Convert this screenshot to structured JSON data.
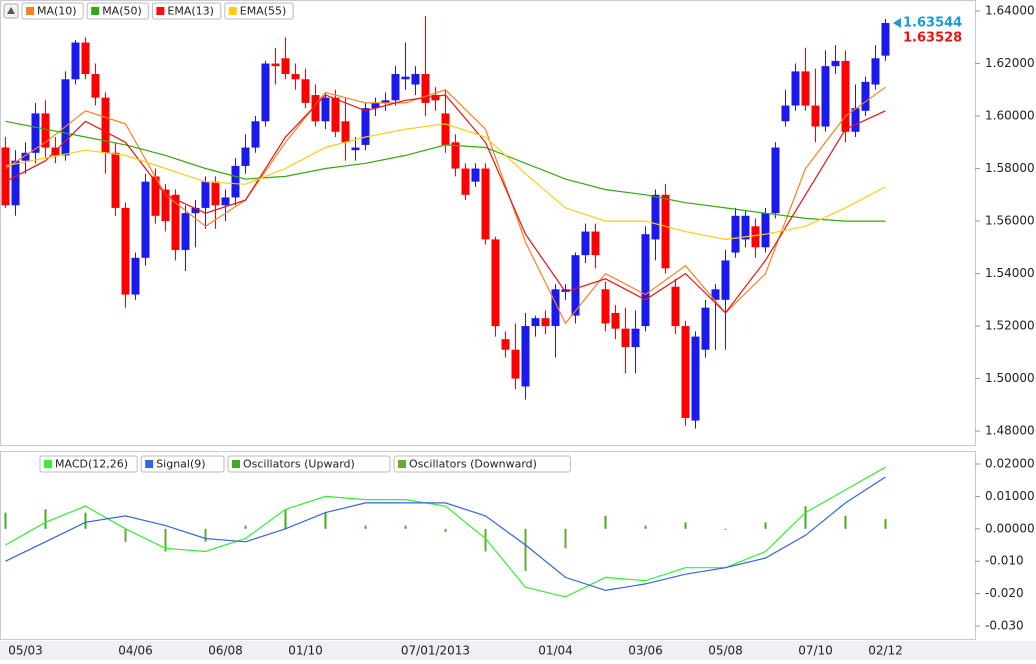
{
  "chart_data": [
    {
      "type": "candlestick",
      "categories": [
        null,
        null,
        "05/03",
        null,
        null,
        null,
        null,
        null,
        null,
        null,
        null,
        null,
        null,
        "04/06",
        null,
        null,
        null,
        null,
        null,
        null,
        null,
        null,
        "06/08",
        null,
        null,
        null,
        null,
        null,
        null,
        null,
        "01/10",
        null,
        null,
        null,
        null,
        null,
        null,
        null,
        null,
        null,
        null,
        null,
        null,
        "07/01/2013",
        null,
        null,
        null,
        null,
        null,
        null,
        null,
        null,
        null,
        null,
        null,
        "01/04",
        null,
        null,
        null,
        null,
        null,
        null,
        null,
        null,
        "03/06",
        null,
        null,
        null,
        null,
        null,
        null,
        null,
        "05/08",
        null,
        null,
        null,
        null,
        null,
        null,
        null,
        null,
        "07/10",
        null,
        null,
        null,
        null,
        null,
        null,
        "02/12"
      ],
      "open": [
        1.588,
        1.566,
        1.583,
        1.586,
        1.601,
        1.588,
        1.585,
        1.614,
        1.628,
        1.616,
        1.607,
        1.586,
        1.565,
        1.532,
        1.546,
        1.577,
        1.572,
        1.57,
        1.549,
        1.563,
        1.565,
        1.575,
        1.566,
        1.569,
        1.581,
        1.588,
        1.598,
        1.62,
        1.622,
        1.616,
        1.614,
        1.608,
        1.598,
        1.607,
        1.598,
        1.587,
        1.589,
        1.603,
        1.605,
        1.606,
        1.614,
        1.612,
        1.616,
        1.608,
        1.601,
        1.59,
        1.58,
        1.575,
        1.58,
        1.553,
        1.515,
        1.511,
        1.497,
        1.52,
        1.523,
        1.52,
        1.533,
        1.524,
        1.547,
        1.556,
        1.534,
        1.525,
        1.519,
        1.512,
        1.52,
        1.553,
        1.57,
        1.535,
        1.52,
        1.484,
        1.511,
        1.53,
        1.53,
        1.548,
        1.553,
        1.558,
        1.55,
        1.563,
        1.598,
        1.604,
        1.617,
        1.604,
        1.596,
        1.619,
        1.621,
        1.594,
        1.602,
        1.612,
        1.623
      ],
      "high": [
        1.592,
        1.587,
        1.59,
        1.605,
        1.606,
        1.592,
        1.617,
        1.629,
        1.63,
        1.62,
        1.609,
        1.59,
        1.567,
        1.548,
        1.578,
        1.58,
        1.574,
        1.572,
        1.566,
        1.568,
        1.577,
        1.577,
        1.572,
        1.584,
        1.593,
        1.6,
        1.621,
        1.626,
        1.63,
        1.62,
        1.618,
        1.612,
        1.609,
        1.61,
        1.607,
        1.592,
        1.605,
        1.607,
        1.609,
        1.619,
        1.628,
        1.619,
        1.638,
        1.611,
        1.61,
        1.593,
        1.582,
        1.582,
        1.582,
        1.554,
        1.518,
        1.521,
        1.525,
        1.524,
        1.526,
        1.536,
        1.536,
        1.548,
        1.559,
        1.559,
        1.537,
        1.528,
        1.527,
        1.526,
        1.558,
        1.572,
        1.574,
        1.538,
        1.522,
        1.518,
        1.53,
        1.536,
        1.549,
        1.565,
        1.564,
        1.561,
        1.565,
        1.59,
        1.61,
        1.62,
        1.626,
        1.618,
        1.625,
        1.627,
        1.625,
        1.612,
        1.615,
        1.627,
        1.637
      ],
      "low": [
        1.565,
        1.562,
        1.578,
        1.582,
        1.584,
        1.582,
        1.583,
        1.612,
        1.614,
        1.604,
        1.578,
        1.562,
        1.527,
        1.53,
        1.543,
        1.559,
        1.556,
        1.545,
        1.541,
        1.55,
        1.557,
        1.557,
        1.56,
        1.566,
        1.578,
        1.586,
        1.596,
        1.612,
        1.614,
        1.61,
        1.603,
        1.596,
        1.595,
        1.592,
        1.583,
        1.583,
        1.587,
        1.6,
        1.602,
        1.604,
        1.61,
        1.608,
        1.6,
        1.602,
        1.586,
        1.577,
        1.568,
        1.573,
        1.551,
        1.516,
        1.508,
        1.496,
        1.492,
        1.516,
        1.517,
        1.508,
        1.53,
        1.521,
        1.544,
        1.542,
        1.518,
        1.515,
        1.502,
        1.502,
        1.518,
        1.545,
        1.54,
        1.517,
        1.482,
        1.481,
        1.508,
        1.511,
        1.511,
        1.546,
        1.55,
        1.546,
        1.548,
        1.561,
        1.596,
        1.602,
        1.602,
        1.59,
        1.594,
        1.616,
        1.59,
        1.592,
        1.6,
        1.61,
        1.621
      ],
      "close": [
        1.566,
        1.583,
        1.586,
        1.601,
        1.588,
        1.585,
        1.614,
        1.628,
        1.616,
        1.607,
        1.586,
        1.565,
        1.532,
        1.546,
        1.575,
        1.562,
        1.56,
        1.549,
        1.563,
        1.565,
        1.575,
        1.566,
        1.569,
        1.581,
        1.588,
        1.598,
        1.62,
        1.619,
        1.616,
        1.614,
        1.605,
        1.598,
        1.607,
        1.594,
        1.59,
        1.588,
        1.603,
        1.605,
        1.606,
        1.616,
        1.615,
        1.616,
        1.605,
        1.606,
        1.589,
        1.58,
        1.57,
        1.58,
        1.553,
        1.52,
        1.511,
        1.5,
        1.52,
        1.523,
        1.52,
        1.534,
        1.534,
        1.547,
        1.556,
        1.547,
        1.521,
        1.519,
        1.512,
        1.519,
        1.555,
        1.57,
        1.542,
        1.52,
        1.485,
        1.516,
        1.527,
        1.534,
        1.545,
        1.562,
        1.562,
        1.55,
        1.563,
        1.588,
        1.604,
        1.617,
        1.604,
        1.596,
        1.619,
        1.621,
        1.594,
        1.603,
        1.613,
        1.622,
        1.63544
      ],
      "up_color": "#1a1aee",
      "down_color": "#ff0000",
      "series": [
        {
          "name": "MA(10)",
          "color": "#ff7f1e",
          "x": [
            0,
            4,
            8,
            12,
            16,
            20,
            24,
            28,
            32,
            36,
            40,
            44,
            48,
            52,
            56,
            60,
            64,
            68,
            72,
            76,
            80,
            84,
            88
          ],
          "values": [
            1.58,
            1.59,
            1.602,
            1.597,
            1.57,
            1.558,
            1.568,
            1.59,
            1.609,
            1.605,
            1.605,
            1.61,
            1.595,
            1.552,
            1.521,
            1.54,
            1.532,
            1.543,
            1.525,
            1.54,
            1.58,
            1.6,
            1.611
          ]
        },
        {
          "name": "MA(50)",
          "color": "#33aa11",
          "x": [
            0,
            4,
            8,
            12,
            16,
            20,
            24,
            28,
            32,
            36,
            40,
            44,
            48,
            52,
            56,
            60,
            64,
            68,
            72,
            76,
            80,
            84,
            88
          ],
          "values": [
            1.598,
            1.595,
            1.592,
            1.589,
            1.585,
            1.58,
            1.576,
            1.577,
            1.58,
            1.582,
            1.585,
            1.589,
            1.588,
            1.582,
            1.576,
            1.572,
            1.57,
            1.567,
            1.565,
            1.563,
            1.561,
            1.56,
            1.56
          ]
        },
        {
          "name": "EMA(13)",
          "color": "#ee1111",
          "x": [
            0,
            4,
            8,
            12,
            16,
            20,
            24,
            28,
            32,
            36,
            40,
            44,
            48,
            52,
            56,
            60,
            64,
            68,
            72,
            76,
            80,
            84,
            88
          ],
          "values": [
            1.575,
            1.583,
            1.598,
            1.59,
            1.57,
            1.563,
            1.568,
            1.592,
            1.608,
            1.602,
            1.606,
            1.608,
            1.59,
            1.555,
            1.533,
            1.538,
            1.53,
            1.54,
            1.525,
            1.545,
            1.57,
            1.595,
            1.602
          ]
        },
        {
          "name": "EMA(55)",
          "color": "#ffcc11",
          "x": [
            0,
            4,
            8,
            12,
            16,
            20,
            24,
            28,
            32,
            36,
            40,
            44,
            48,
            52,
            56,
            60,
            64,
            68,
            72,
            76,
            80,
            84,
            88
          ],
          "values": [
            1.581,
            1.584,
            1.587,
            1.585,
            1.58,
            1.575,
            1.574,
            1.58,
            1.588,
            1.592,
            1.595,
            1.597,
            1.592,
            1.578,
            1.565,
            1.56,
            1.56,
            1.556,
            1.553,
            1.555,
            1.558,
            1.565,
            1.573
          ]
        }
      ],
      "price_labels": [
        {
          "value": 1.63544,
          "label": "1.63544",
          "color": "#1a99dd"
        },
        {
          "value": 1.63528,
          "label": "1.63528",
          "color": "#ee1111"
        }
      ],
      "ylim": [
        1.4747,
        1.6442
      ],
      "yticks": [
        {
          "value": 1.64,
          "label": "1.64000"
        },
        {
          "value": 1.62,
          "label": "1.62000"
        },
        {
          "value": 1.6,
          "label": "1.60000"
        },
        {
          "value": 1.58,
          "label": "1.58000"
        },
        {
          "value": 1.56,
          "label": "1.56000"
        },
        {
          "value": 1.54,
          "label": "1.54000"
        },
        {
          "value": 1.52,
          "label": "1.52000"
        },
        {
          "value": 1.5,
          "label": "1.50000"
        },
        {
          "value": 1.48,
          "label": "1.48000"
        }
      ]
    },
    {
      "type": "macd",
      "series": [
        {
          "name": "MACD(12,26)",
          "kind": "line",
          "color": "#33ee33",
          "x": [
            0,
            4,
            8,
            12,
            16,
            20,
            24,
            28,
            32,
            36,
            40,
            44,
            48,
            52,
            56,
            60,
            64,
            68,
            72,
            76,
            80,
            84,
            88
          ],
          "values": [
            -0.005,
            0.002,
            0.007,
            0.0,
            -0.006,
            -0.007,
            -0.003,
            0.006,
            0.01,
            0.009,
            0.009,
            0.007,
            -0.003,
            -0.018,
            -0.021,
            -0.015,
            -0.016,
            -0.012,
            -0.012,
            -0.007,
            0.005,
            0.012,
            0.019
          ]
        },
        {
          "name": "Signal(9)",
          "kind": "line",
          "color": "#3366dd",
          "x": [
            0,
            4,
            8,
            12,
            16,
            20,
            24,
            28,
            32,
            36,
            40,
            44,
            48,
            52,
            56,
            60,
            64,
            68,
            72,
            76,
            80,
            84,
            88
          ],
          "values": [
            -0.01,
            -0.004,
            0.002,
            0.004,
            0.001,
            -0.003,
            -0.004,
            0.0,
            0.005,
            0.008,
            0.008,
            0.008,
            0.004,
            -0.005,
            -0.015,
            -0.019,
            -0.017,
            -0.014,
            -0.012,
            -0.009,
            -0.002,
            0.008,
            0.016
          ]
        },
        {
          "name": "Oscillators (Upward)",
          "kind": "bar",
          "color": "#44aa22",
          "x": [
            0,
            4,
            8,
            12,
            16,
            20,
            24,
            28,
            32,
            36,
            40,
            44,
            48,
            52,
            56,
            60,
            64,
            68,
            72,
            76,
            80,
            84,
            88
          ],
          "values": [
            0.005,
            0.006,
            0.005,
            null,
            null,
            null,
            0.001,
            0.006,
            0.005,
            0.001,
            0.001,
            null,
            null,
            null,
            null,
            0.004,
            0.001,
            0.002,
            0.0,
            0.002,
            0.007,
            0.004,
            0.003
          ]
        },
        {
          "name": "Oscillators (Downward)",
          "kind": "bar",
          "color": "#66aa33",
          "x": [
            0,
            4,
            8,
            12,
            16,
            20,
            24,
            28,
            32,
            36,
            40,
            44,
            48,
            52,
            56,
            60,
            64,
            68,
            72,
            76,
            80,
            84,
            88
          ],
          "values": [
            null,
            null,
            null,
            -0.004,
            -0.007,
            -0.004,
            null,
            null,
            null,
            null,
            null,
            -0.001,
            -0.007,
            -0.013,
            -0.006,
            null,
            null,
            null,
            null,
            null,
            null,
            null,
            null
          ]
        }
      ],
      "ylim": [
        -0.0343,
        0.0237
      ],
      "yticks": [
        {
          "value": 0.02,
          "label": "0.02000"
        },
        {
          "value": 0.01,
          "label": "0.01000"
        },
        {
          "value": 0,
          "label": "0.00000"
        },
        {
          "value": -0.01,
          "label": "-0.010"
        },
        {
          "value": -0.02,
          "label": "-0.020"
        },
        {
          "value": -0.03,
          "label": "-0.030"
        }
      ]
    }
  ]
}
